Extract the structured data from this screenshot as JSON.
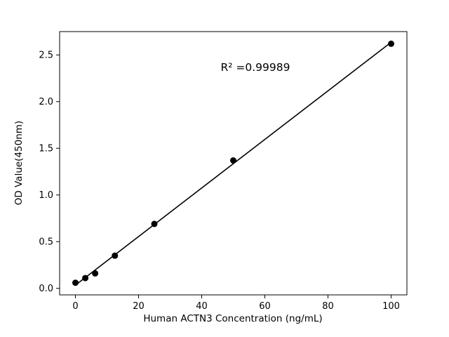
{
  "figure": {
    "background": "#ffffff"
  },
  "chart_data": {
    "type": "scatter",
    "title": "",
    "xlabel": "Human ACTN3 Concentration (ng/mL)",
    "ylabel": "OD Value(450nm)",
    "x": [
      0,
      3.125,
      6.25,
      12.5,
      25,
      50,
      100
    ],
    "y": [
      0.06,
      0.11,
      0.16,
      0.35,
      0.69,
      1.37,
      2.62
    ],
    "fit_line": true,
    "xlim": [
      -5,
      105
    ],
    "ylim": [
      -0.07,
      2.75
    ],
    "xticks": [
      0,
      20,
      40,
      60,
      80,
      100
    ],
    "xtick_labels": [
      "0",
      "20",
      "40",
      "60",
      "80",
      "100"
    ],
    "yticks": [
      0.0,
      0.5,
      1.0,
      1.5,
      2.0,
      2.5
    ],
    "ytick_labels": [
      "0.0",
      "0.5",
      "1.0",
      "1.5",
      "2.0",
      "2.5"
    ],
    "annotation": {
      "text": "R² =0.99989",
      "x": 57,
      "y": 2.33
    },
    "marker_color": "#000000",
    "line_color": "#000000",
    "grid": false,
    "legend": "none"
  }
}
